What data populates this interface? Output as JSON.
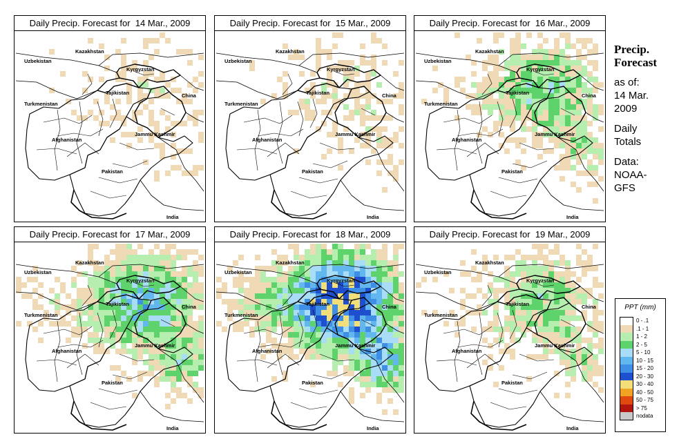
{
  "panels": [
    {
      "title": "Daily Precip. Forecast for  14 Mar., 2009",
      "intensity": 0.15
    },
    {
      "title": "Daily Precip. Forecast for  15 Mar., 2009",
      "intensity": 0.2
    },
    {
      "title": "Daily Precip. Forecast for  16 Mar., 2009",
      "intensity": 0.45
    },
    {
      "title": "Daily Precip. Forecast for  17 Mar., 2009",
      "intensity": 0.6
    },
    {
      "title": "Daily Precip. Forecast for  18 Mar., 2009",
      "intensity": 0.95
    },
    {
      "title": "Daily Precip. Forecast for  19 Mar., 2009",
      "intensity": 0.4
    }
  ],
  "map_labels": {
    "uzbekistan": "Uzbekistan",
    "kazakhstan": "Kazakhstan",
    "kyrgyzstan": "Kyrgyzstan",
    "tajikistan": "Tajikistan",
    "turkmenistan": "Turkmenistan",
    "china": "China",
    "afghanistan": "Afghanistan",
    "jammu_kashmir": "Jammu Kashmir",
    "pakistan": "Pakistan",
    "india": "India"
  },
  "sidebar": {
    "title_line1": "Precip.",
    "title_line2": "Forecast",
    "asof_label": "as of:",
    "asof_date1": "14 Mar.",
    "asof_date2": "2009",
    "totals1": "Daily",
    "totals2": "Totals",
    "data_label": "Data:",
    "data_src1": "NOAA-",
    "data_src2": "GFS"
  },
  "legend": {
    "title": "PPT (mm)",
    "bins": [
      {
        "range": "0 - .1",
        "color": "#ffffff"
      },
      {
        "range": ".1 - 1",
        "color": "#f0d9b5"
      },
      {
        "range": "1 - 2",
        "color": "#b6eeb0"
      },
      {
        "range": "2 - 5",
        "color": "#5fd36b"
      },
      {
        "range": "5 - 10",
        "color": "#a9dcf7"
      },
      {
        "range": "10 - 15",
        "color": "#62b8ee"
      },
      {
        "range": "15 - 20",
        "color": "#3f8fe6"
      },
      {
        "range": "20 - 30",
        "color": "#1d4fcf"
      },
      {
        "range": "30 - 40",
        "color": "#f3de7a"
      },
      {
        "range": "40 - 50",
        "color": "#f1a323"
      },
      {
        "range": "50 - 75",
        "color": "#e04a10"
      },
      {
        "range": "> 75",
        "color": "#b0160d"
      },
      {
        "range": "nodata",
        "color": "#c9c9c9"
      }
    ]
  }
}
